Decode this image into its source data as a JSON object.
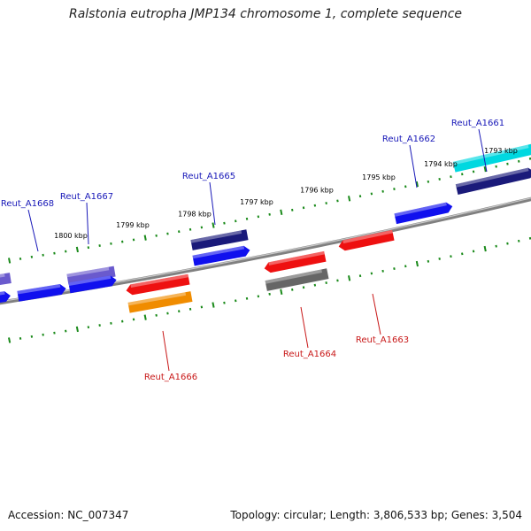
{
  "title": "Ralstonia eutropha JMP134 chromosome 1, complete sequence",
  "footer": {
    "accession": "Accession: NC_007347",
    "summary": "Topology: circular; Length: 3,806,533 bp; Genes: 3,504"
  },
  "scale_labels": [
    "1800 kbp",
    "1799 kbp",
    "1798 kbp",
    "1797 kbp",
    "1796 kbp",
    "1795 kbp",
    "1794 kbp",
    "1793 kbp"
  ],
  "genes": [
    {
      "label": "Reut_A1661",
      "strand": "plus",
      "color": "#00d8e0"
    },
    {
      "label": "Reut_A1662",
      "strand": "plus",
      "color": "#1010ee"
    },
    {
      "label": "Reut_A1663",
      "strand": "minus",
      "color": "#ee1010"
    },
    {
      "label": "Reut_A1664",
      "strand": "minus",
      "color": "#ee1010"
    },
    {
      "label": "Reut_A1665",
      "strand": "plus",
      "color": "#1a1a7a"
    },
    {
      "label": "Reut_A1666",
      "strand": "minus",
      "color": "#ee1010"
    },
    {
      "label": "Reut_A1667",
      "strand": "plus",
      "color": "#6a5acd"
    },
    {
      "label": "Reut_A1668",
      "strand": "plus",
      "color": "#1010ee"
    }
  ],
  "colors": {
    "plus_label": "#1818b8",
    "minus_label": "#c81818",
    "backbone": "#808080",
    "ticks": "#1a8a1a",
    "cog_blue": "#1010ee",
    "cog_orange": "#f08c00",
    "cog_gray": "#666666",
    "cog_slate": "#6a5acd",
    "cog_navy": "#1a1a7a",
    "cog_cyan": "#00d8e0"
  }
}
